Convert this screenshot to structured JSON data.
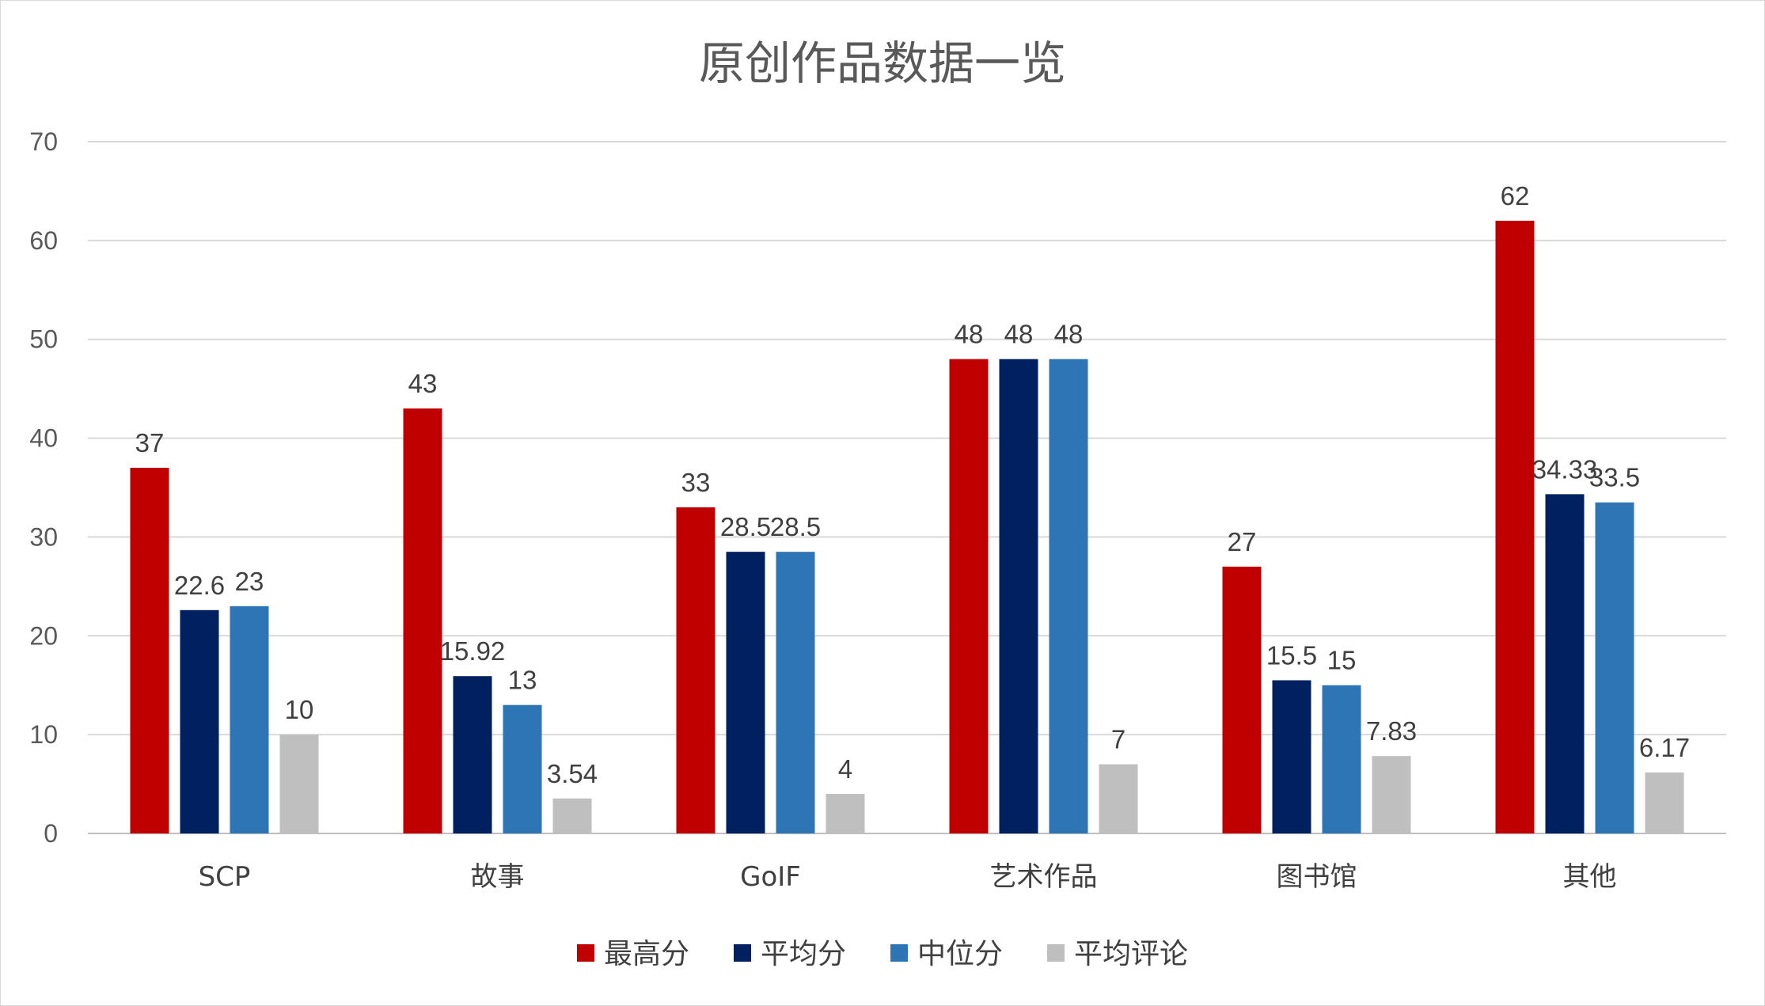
{
  "chart_data": {
    "type": "bar",
    "title": "原创作品数据一览",
    "categories": [
      "SCP",
      "故事",
      "GoIF",
      "艺术作品",
      "图书馆",
      "其他"
    ],
    "series": [
      {
        "name": "最高分",
        "color": "#c00000",
        "values": [
          37,
          43,
          33,
          48,
          27,
          62
        ],
        "labels": [
          "37",
          "43",
          "33",
          "48",
          "27",
          "62"
        ]
      },
      {
        "name": "平均分",
        "color": "#002060",
        "values": [
          22.6,
          15.92,
          28.5,
          48,
          15.5,
          34.33
        ],
        "labels": [
          "22.6",
          "15.92",
          "28.5",
          "48",
          "15.5",
          "34.33"
        ]
      },
      {
        "name": "中位分",
        "color": "#2e75b6",
        "values": [
          23,
          13,
          28.5,
          48,
          15,
          33.5
        ],
        "labels": [
          "23",
          "13",
          "28.5",
          "48",
          "15",
          "33.5"
        ]
      },
      {
        "name": "平均评论",
        "color": "#bfbfbf",
        "values": [
          10,
          3.54,
          4,
          7,
          7.83,
          6.17
        ],
        "labels": [
          "10",
          "3.54",
          "4",
          "7",
          "7.83",
          "6.17"
        ]
      }
    ],
    "yticks": [
      "0",
      "10",
      "20",
      "30",
      "40",
      "50",
      "60",
      "70"
    ],
    "ylim": [
      0,
      70
    ],
    "grid": true,
    "legend": "bottom"
  }
}
